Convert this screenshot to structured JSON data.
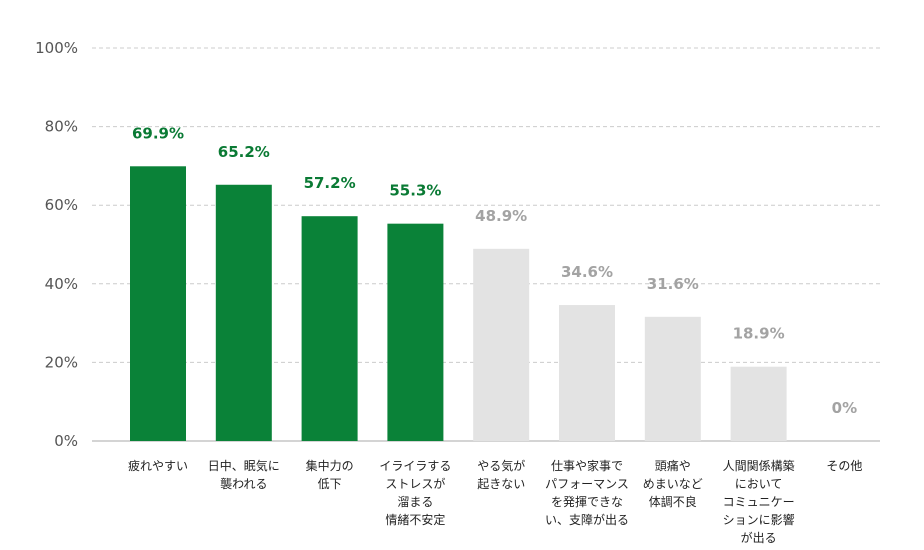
{
  "chart_data": {
    "type": "bar",
    "title": "",
    "xlabel": "",
    "ylabel": "",
    "ylim": [
      0,
      100
    ],
    "y_ticks": [
      "0%",
      "20%",
      "40%",
      "60%",
      "80%",
      "100%"
    ],
    "grid": true,
    "categories": [
      [
        "疲れやすい"
      ],
      [
        "日中、眠気に",
        "襲われる"
      ],
      [
        "集中力の",
        "低下"
      ],
      [
        "イライラする",
        "ストレスが",
        "溜まる",
        "情緒不安定"
      ],
      [
        "やる気が",
        "起きない"
      ],
      [
        "仕事や家事で",
        "パフォーマンス",
        "を発揮できな",
        "い、支障が出る"
      ],
      [
        "頭痛や",
        "めまいなど",
        "体調不良"
      ],
      [
        "人間関係構築",
        "において",
        "コミュニケー",
        "ションに影響",
        "が出る"
      ],
      [
        "その他"
      ]
    ],
    "values": [
      69.9,
      65.2,
      57.2,
      55.3,
      48.9,
      34.6,
      31.6,
      18.9,
      0
    ],
    "value_labels": [
      "69.9%",
      "65.2%",
      "57.2%",
      "55.3%",
      "48.9%",
      "34.6%",
      "31.6%",
      "18.9%",
      "0%"
    ],
    "highlighted": [
      true,
      true,
      true,
      true,
      false,
      false,
      false,
      false,
      false
    ],
    "colors": {
      "highlight_bar": "#0a8238",
      "normal_bar": "#e3e3e3",
      "highlight_label": "#0a7a34",
      "normal_label": "#a3a3a3",
      "grid": "#cccccc",
      "axis": "#aaaaaa"
    }
  }
}
